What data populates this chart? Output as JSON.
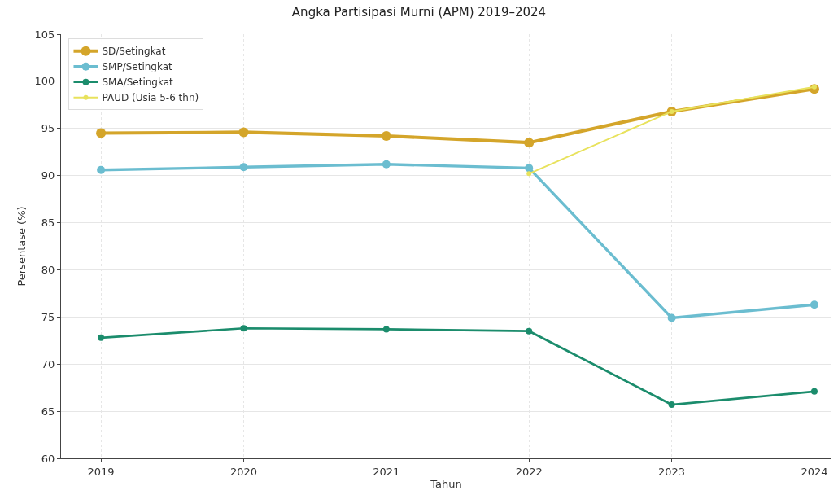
{
  "chart_data": {
    "type": "line",
    "title": "Angka Partisipasi Murni (APM) 2019–2024",
    "xlabel": "Tahun",
    "ylabel": "Persentase (%)",
    "x": [
      2019,
      2020,
      2021,
      2022,
      2023,
      2024
    ],
    "xlim": [
      2018.72,
      2024.12
    ],
    "xticks": [
      2019,
      2020,
      2021,
      2022,
      2023,
      2024
    ],
    "ylim": [
      60,
      105
    ],
    "yticks": [
      60,
      65,
      70,
      75,
      80,
      85,
      90,
      95,
      100,
      105
    ],
    "series": [
      {
        "name": "SD/Setingkat",
        "color": "#d4a52a",
        "values": [
          94.5,
          94.6,
          94.2,
          93.5,
          96.8,
          99.2
        ]
      },
      {
        "name": "SMP/Setingkat",
        "color": "#6bbdd0",
        "values": [
          90.6,
          90.9,
          91.2,
          90.8,
          74.9,
          76.3
        ]
      },
      {
        "name": "SMA/Setingkat",
        "color": "#1b8c6c",
        "values": [
          72.8,
          73.8,
          73.7,
          73.5,
          65.7,
          67.1
        ]
      },
      {
        "name": "PAUD (Usia 5-6 thn)",
        "color": "#e8e25c",
        "values": [
          null,
          null,
          null,
          90.2,
          96.8,
          99.4
        ]
      }
    ],
    "grid": true,
    "legend": "top left",
    "marker": "circle",
    "line_style": "solid"
  }
}
